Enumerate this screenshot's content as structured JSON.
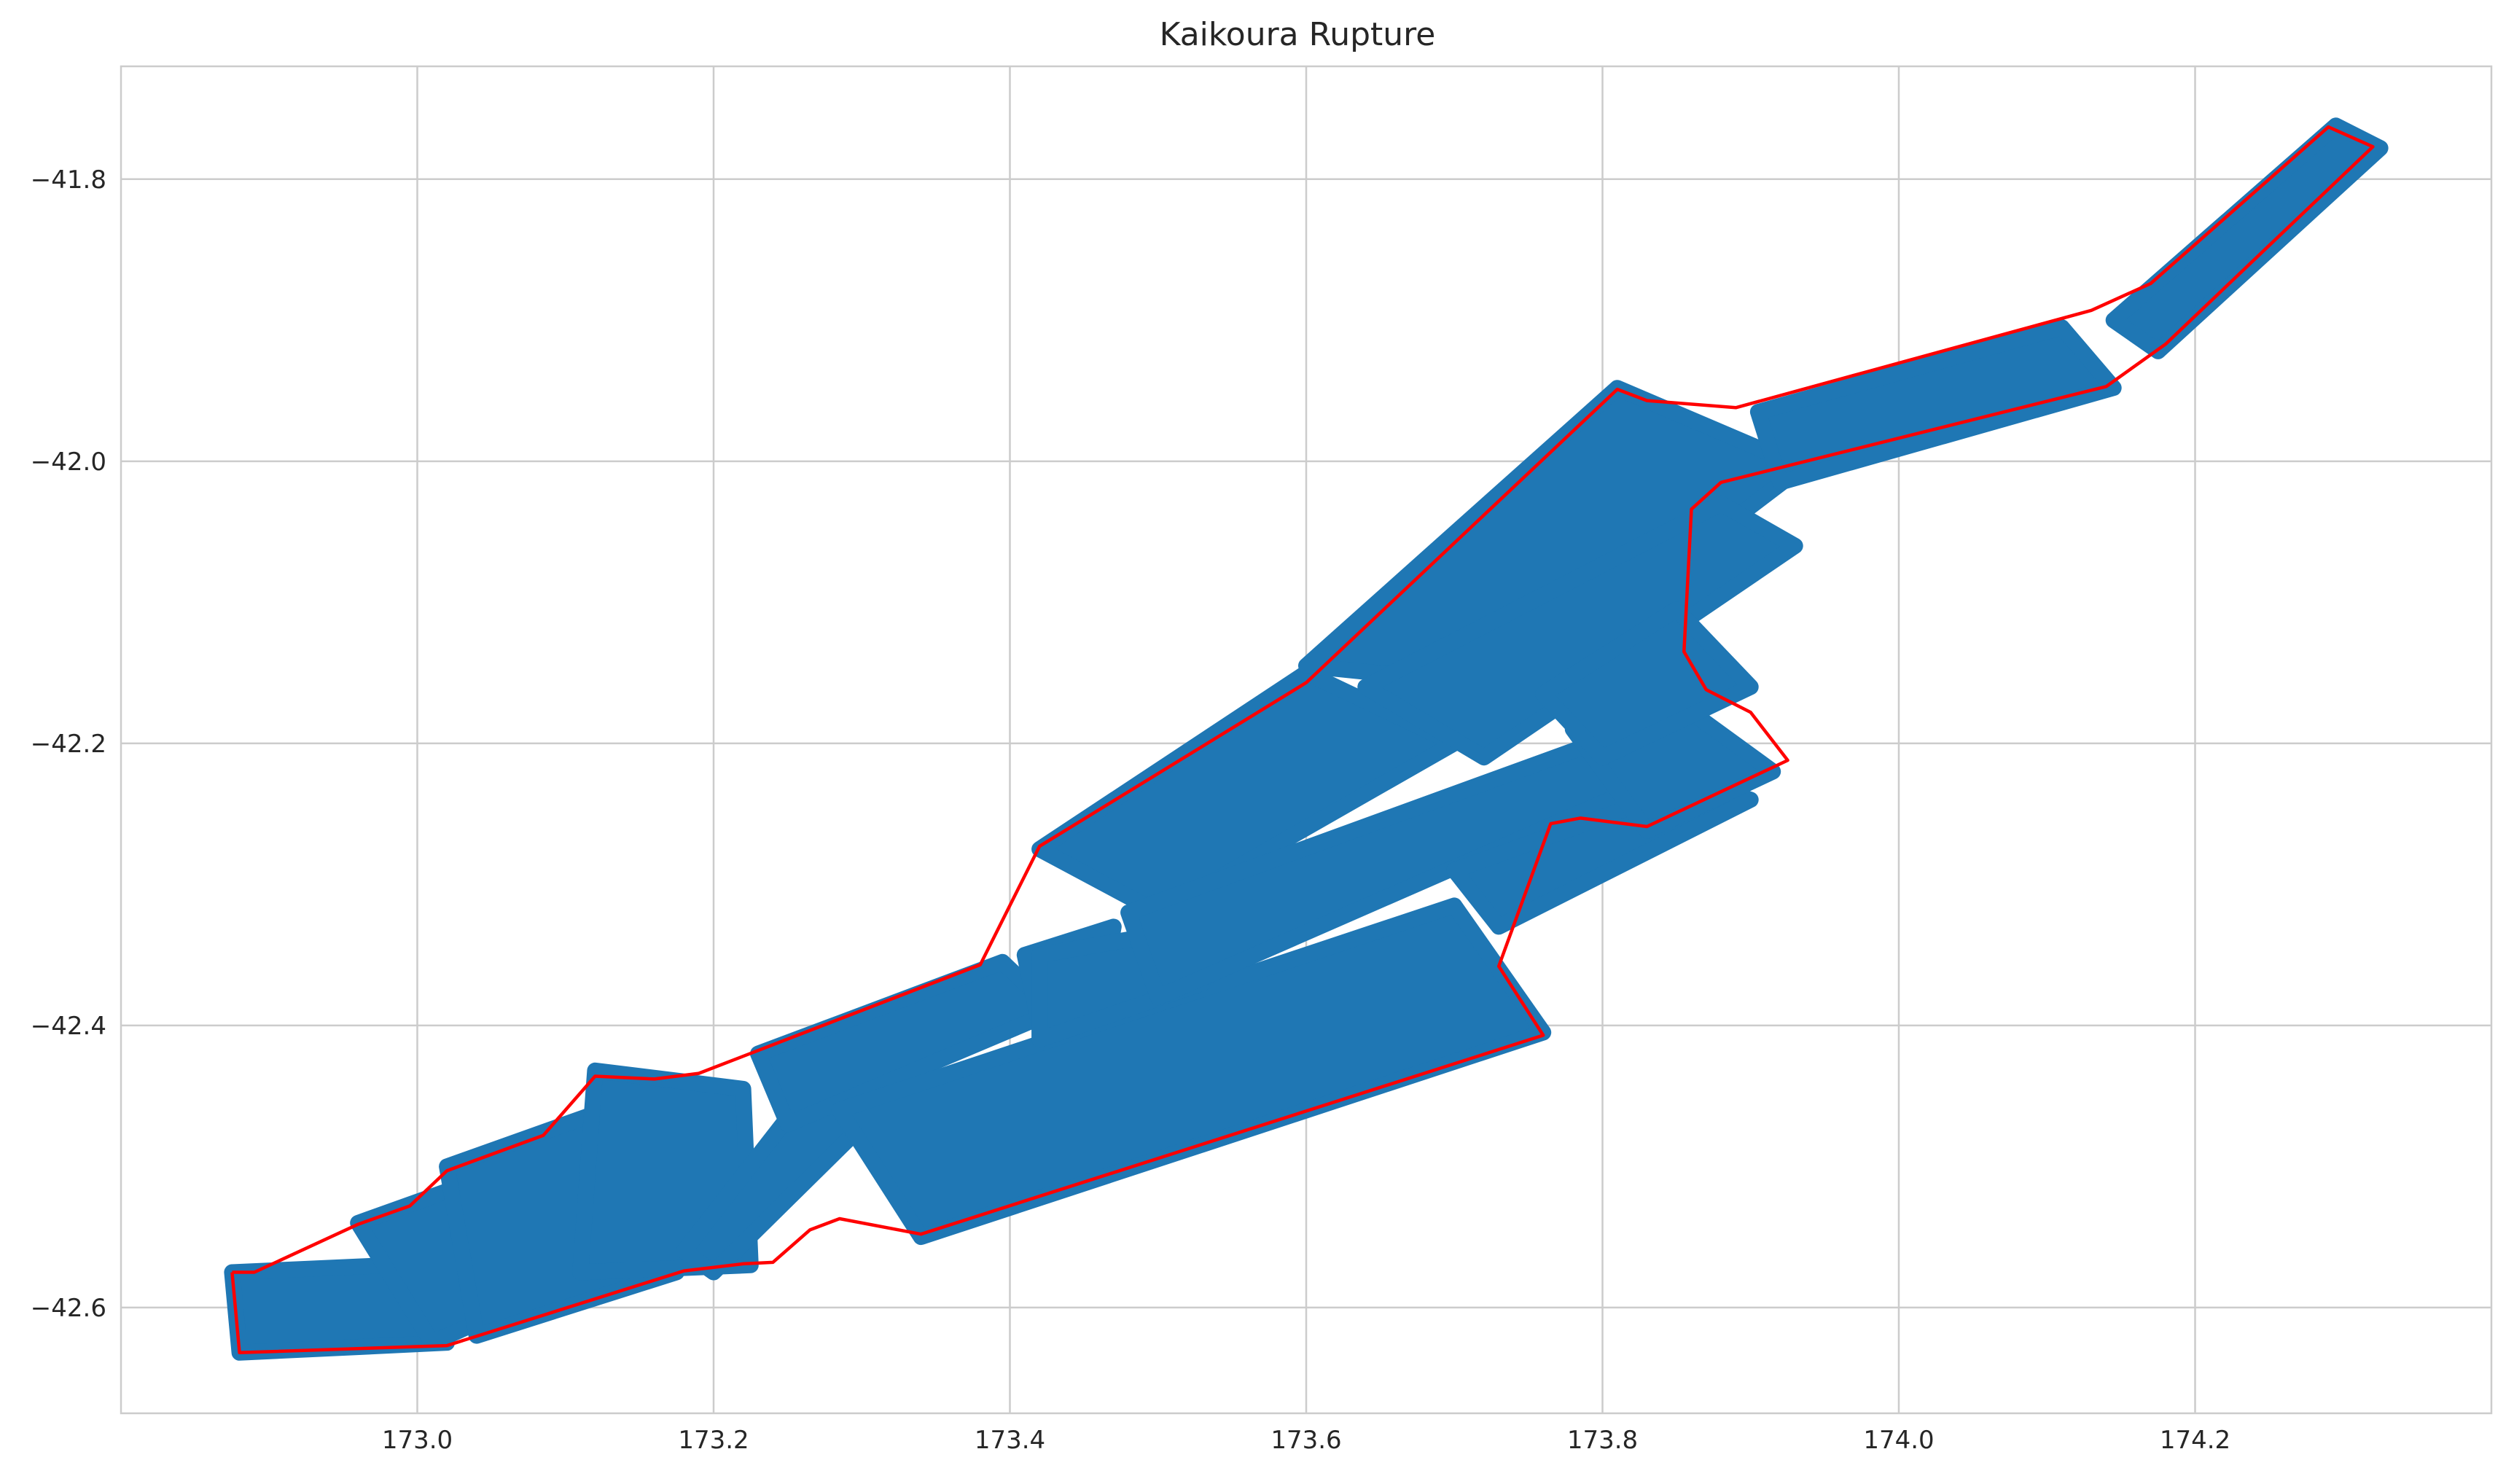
{
  "chart_data": {
    "type": "map",
    "title": "Kaikoura Rupture",
    "xlabel": "",
    "ylabel": "",
    "xlim": [
      172.8,
      174.4
    ],
    "ylim": [
      -42.675,
      -41.72
    ],
    "x_ticks": [
      173.0,
      173.2,
      173.4,
      173.6,
      173.8,
      174.0,
      174.2
    ],
    "x_tick_labels": [
      "173.0",
      "173.2",
      "173.4",
      "173.6",
      "173.8",
      "174.0",
      "174.2"
    ],
    "y_ticks": [
      -41.8,
      -42.0,
      -42.2,
      -42.4,
      -42.6
    ],
    "y_tick_labels": [
      "−41.8",
      "−42.0",
      "−42.2",
      "−42.4",
      "−42.6"
    ],
    "grid": true,
    "colors": {
      "patch": "#1f77b4",
      "outline": "#ff0000",
      "grid": "#cccccc",
      "text": "#262626"
    },
    "fault_patches": [
      [
        [
          172.875,
          -42.575
        ],
        [
          172.98,
          -42.57
        ],
        [
          173.02,
          -42.625
        ],
        [
          172.88,
          -42.632
        ]
      ],
      [
        [
          172.96,
          -42.54
        ],
        [
          173.12,
          -42.48
        ],
        [
          173.17,
          -42.55
        ],
        [
          173.01,
          -42.625
        ]
      ],
      [
        [
          173.02,
          -42.5
        ],
        [
          173.14,
          -42.455
        ],
        [
          173.175,
          -42.575
        ],
        [
          173.04,
          -42.62
        ]
      ],
      [
        [
          173.12,
          -42.432
        ],
        [
          173.22,
          -42.445
        ],
        [
          173.225,
          -42.57
        ],
        [
          173.11,
          -42.575
        ]
      ],
      [
        [
          173.3,
          -42.398
        ],
        [
          173.34,
          -42.43
        ],
        [
          173.2,
          -42.575
        ],
        [
          173.18,
          -42.56
        ]
      ],
      [
        [
          173.23,
          -42.42
        ],
        [
          173.395,
          -42.355
        ],
        [
          173.43,
          -42.39
        ],
        [
          173.25,
          -42.47
        ]
      ],
      [
        [
          173.285,
          -42.46
        ],
        [
          173.7,
          -42.315
        ],
        [
          173.76,
          -42.405
        ],
        [
          173.34,
          -42.55
        ]
      ],
      [
        [
          173.41,
          -42.35
        ],
        [
          173.47,
          -42.33
        ],
        [
          173.46,
          -42.39
        ],
        [
          173.42,
          -42.4
        ]
      ],
      [
        [
          173.42,
          -42.35
        ],
        [
          173.53,
          -42.33
        ],
        [
          173.53,
          -42.37
        ],
        [
          173.42,
          -42.41
        ]
      ],
      [
        [
          173.42,
          -42.275
        ],
        [
          173.6,
          -42.15
        ],
        [
          173.7,
          -42.2
        ],
        [
          173.5,
          -42.32
        ]
      ],
      [
        [
          173.6,
          -42.145
        ],
        [
          173.81,
          -41.948
        ],
        [
          173.935,
          -42.004
        ],
        [
          173.74,
          -42.16
        ]
      ],
      [
        [
          173.64,
          -42.16
        ],
        [
          173.88,
          -42.03
        ],
        [
          173.93,
          -42.06
        ],
        [
          173.72,
          -42.21
        ]
      ],
      [
        [
          173.48,
          -42.32
        ],
        [
          173.82,
          -42.19
        ],
        [
          173.87,
          -42.21
        ],
        [
          173.5,
          -42.38
        ]
      ],
      [
        [
          173.7,
          -42.29
        ],
        [
          173.865,
          -42.228
        ],
        [
          173.9,
          -42.24
        ],
        [
          173.73,
          -42.33
        ]
      ],
      [
        [
          173.83,
          -42.155
        ],
        [
          173.915,
          -42.22
        ],
        [
          173.83,
          -42.262
        ],
        [
          173.78,
          -42.19
        ]
      ],
      [
        [
          173.76,
          -42.165
        ],
        [
          173.85,
          -42.105
        ],
        [
          173.9,
          -42.16
        ],
        [
          173.8,
          -42.21
        ]
      ],
      [
        [
          173.905,
          -41.965
        ],
        [
          174.11,
          -41.905
        ],
        [
          174.145,
          -41.948
        ],
        [
          173.92,
          -42.015
        ]
      ],
      [
        [
          174.145,
          -41.9
        ],
        [
          174.295,
          -41.762
        ],
        [
          174.325,
          -41.778
        ],
        [
          174.175,
          -41.922
        ]
      ]
    ],
    "rupture_outline": [
      [
        172.875,
        -42.575
      ],
      [
        172.89,
        -42.575
      ],
      [
        172.96,
        -42.541
      ],
      [
        172.995,
        -42.528
      ],
      [
        173.02,
        -42.503
      ],
      [
        173.085,
        -42.478
      ],
      [
        173.12,
        -42.436
      ],
      [
        173.16,
        -42.438
      ],
      [
        173.19,
        -42.434
      ],
      [
        173.38,
        -42.357
      ],
      [
        173.42,
        -42.273
      ],
      [
        173.6,
        -42.157
      ],
      [
        173.81,
        -41.949
      ],
      [
        173.83,
        -41.957
      ],
      [
        173.89,
        -41.962
      ],
      [
        174.13,
        -41.893
      ],
      [
        174.17,
        -41.874
      ],
      [
        174.29,
        -41.763
      ],
      [
        174.32,
        -41.777
      ],
      [
        174.18,
        -41.917
      ],
      [
        174.14,
        -41.947
      ],
      [
        173.88,
        -42.015
      ],
      [
        173.86,
        -42.034
      ],
      [
        173.855,
        -42.135
      ],
      [
        173.87,
        -42.162
      ],
      [
        173.9,
        -42.178
      ],
      [
        173.925,
        -42.212
      ],
      [
        173.83,
        -42.259
      ],
      [
        173.785,
        -42.253
      ],
      [
        173.765,
        -42.257
      ],
      [
        173.73,
        -42.358
      ],
      [
        173.76,
        -42.407
      ],
      [
        173.34,
        -42.548
      ],
      [
        173.285,
        -42.537
      ],
      [
        173.265,
        -42.545
      ],
      [
        173.24,
        -42.568
      ],
      [
        173.22,
        -42.569
      ],
      [
        173.18,
        -42.574
      ],
      [
        173.02,
        -42.627
      ],
      [
        172.88,
        -42.632
      ],
      [
        172.875,
        -42.575
      ]
    ]
  }
}
